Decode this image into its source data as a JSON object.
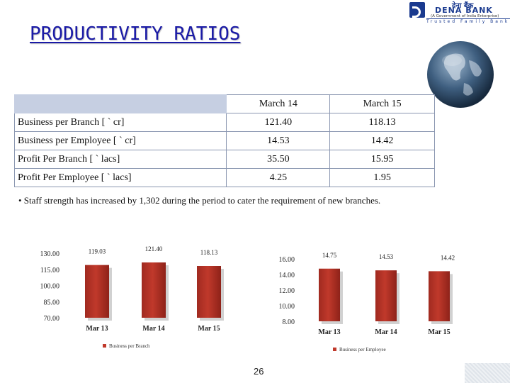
{
  "slide": {
    "title": "PRODUCTIVITY RATIOS",
    "page_number": "26",
    "bullet": "• Staff strength has increased by 1,302 during the period to cater the requirement of new branches."
  },
  "logo": {
    "hindi": "देना बैंक",
    "name": "DENA BANK",
    "sub": "(A Government of India Enterprise)",
    "tagline": "Trusted  Family  Bank"
  },
  "table": {
    "headers": [
      "",
      "March 14",
      "March 15"
    ],
    "rows": [
      {
        "label": "Business per Branch [ ` cr]",
        "march14": "121.40",
        "march15": "118.13"
      },
      {
        "label": "Business per Employee  [ ` cr]",
        "march14": "14.53",
        "march15": "14.42"
      },
      {
        "label": "Profit Per Branch [ ` lacs]",
        "march14": "35.50",
        "march15": "15.95"
      },
      {
        "label": "Profit Per Employee [ ` lacs]",
        "march14": "4.25",
        "march15": "1.95"
      }
    ]
  },
  "colors": {
    "bar": "#c0392b",
    "title": "#1a1aa6",
    "table_header": "#c6cfe2"
  },
  "chart_data": [
    {
      "type": "bar",
      "categories": [
        "Mar 13",
        "Mar 14",
        "Mar 15"
      ],
      "values": [
        119.03,
        121.4,
        118.13
      ],
      "data_labels": [
        "119.03",
        "121.40",
        "118.13"
      ],
      "yticks": [
        "130.00",
        "115.00",
        "100.00",
        "85.00",
        "70.00"
      ],
      "ylim": [
        70,
        130
      ],
      "legend": "Business per Branch",
      "legend_position": "bottom"
    },
    {
      "type": "bar",
      "categories": [
        "Mar 13",
        "Mar 14",
        "Mar 15"
      ],
      "values": [
        14.75,
        14.53,
        14.42
      ],
      "data_labels": [
        "14.75",
        "14.53",
        "14.42"
      ],
      "yticks": [
        "16.00",
        "14.00",
        "12.00",
        "10.00",
        "8.00"
      ],
      "ylim": [
        8,
        16
      ],
      "legend": "Business per Employee",
      "legend_position": "bottom"
    }
  ]
}
